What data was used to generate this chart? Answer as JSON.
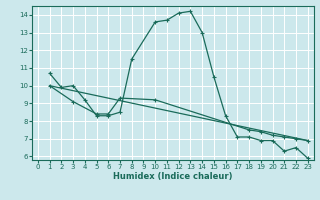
{
  "xlabel": "Humidex (Indice chaleur)",
  "bg_color": "#cce8ec",
  "grid_color": "#ffffff",
  "line_color": "#1a6b5a",
  "xlim": [
    -0.5,
    23.5
  ],
  "ylim": [
    5.8,
    14.5
  ],
  "yticks": [
    6,
    7,
    8,
    9,
    10,
    11,
    12,
    13,
    14
  ],
  "xticks": [
    0,
    1,
    2,
    3,
    4,
    5,
    6,
    7,
    8,
    9,
    10,
    11,
    12,
    13,
    14,
    15,
    16,
    17,
    18,
    19,
    20,
    21,
    22,
    23
  ],
  "series1_x": [
    1,
    2,
    3,
    4,
    5,
    6,
    7,
    8,
    10,
    11,
    12,
    13,
    14,
    15,
    16,
    17,
    18,
    19,
    20,
    21,
    22,
    23
  ],
  "series1_y": [
    10.7,
    9.9,
    10.0,
    9.2,
    8.3,
    8.3,
    8.5,
    11.5,
    13.6,
    13.7,
    14.1,
    14.2,
    13.0,
    10.5,
    8.3,
    7.1,
    7.1,
    6.9,
    6.9,
    6.3,
    6.5,
    5.9
  ],
  "series2_x": [
    1,
    3,
    5,
    6,
    7,
    10,
    18,
    19,
    20,
    21,
    22,
    23
  ],
  "series2_y": [
    10.0,
    9.1,
    8.4,
    8.4,
    9.3,
    9.2,
    7.5,
    7.4,
    7.2,
    7.1,
    7.0,
    6.9
  ],
  "series3_x": [
    1,
    23
  ],
  "series3_y": [
    10.0,
    6.9
  ]
}
